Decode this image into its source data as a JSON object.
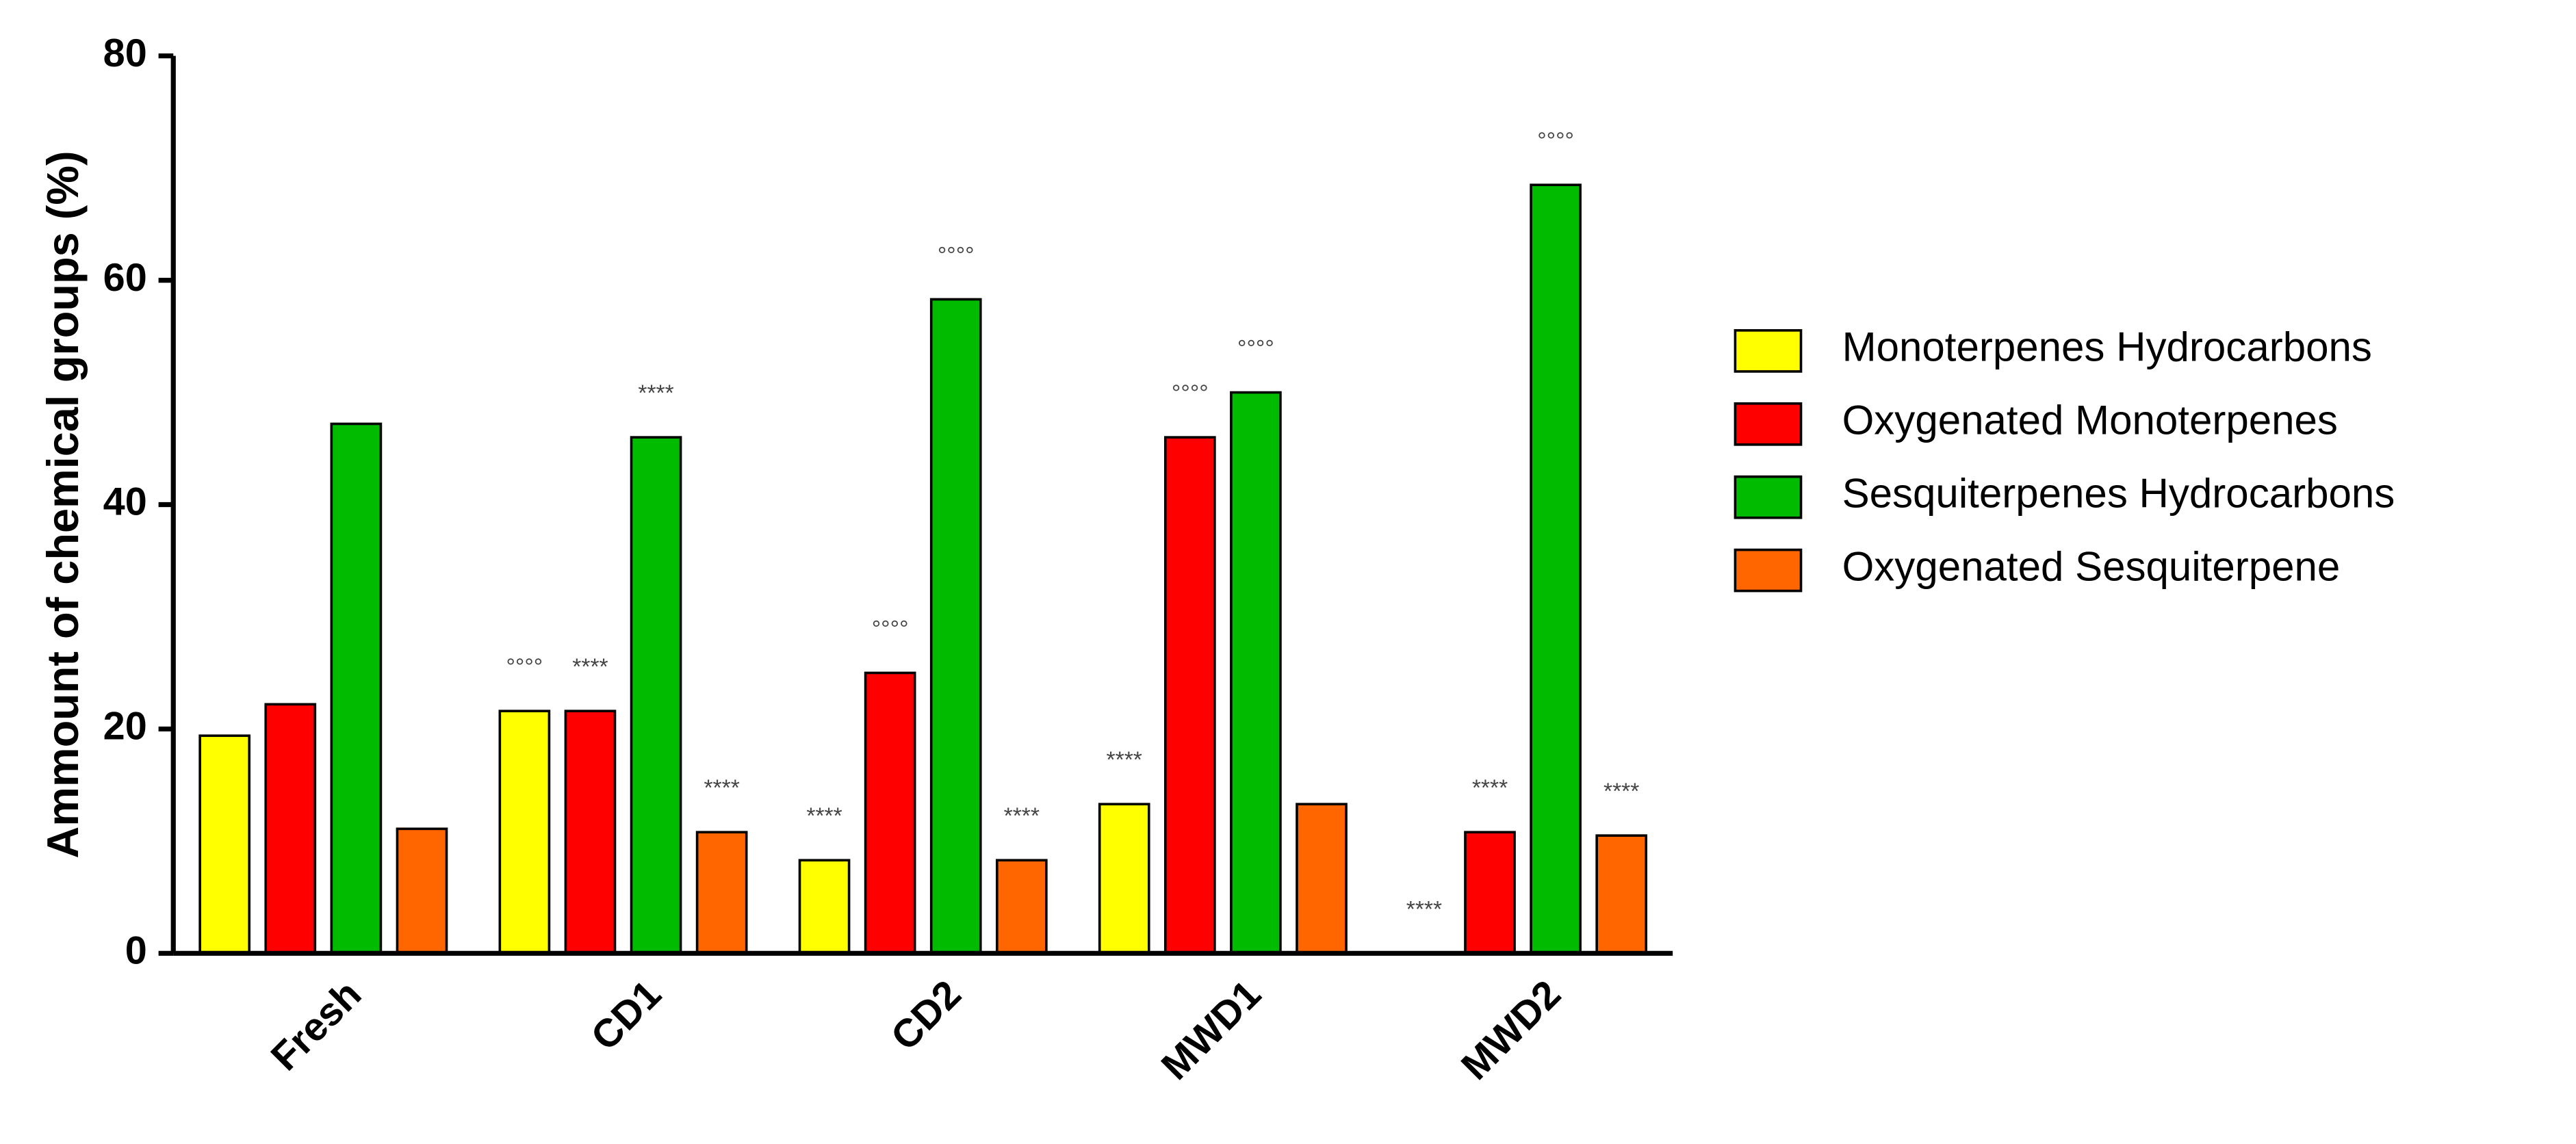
{
  "chart_data": {
    "type": "bar",
    "y_label": "Ammount of chemical groups (%)",
    "categories": [
      "Fresh",
      "CD1",
      "CD2",
      "MWD1",
      "MWD2"
    ],
    "series": [
      {
        "name": "Monoterpenes Hydrocarbons",
        "color": "#ffff00",
        "values": [
          19.4,
          21.6,
          8.3,
          13.3,
          0
        ],
        "annotations": [
          null,
          "°°°°",
          "****",
          "****",
          "****"
        ]
      },
      {
        "name": "Oxygenated Monoterpenes",
        "color": "#ff0000",
        "values": [
          22.2,
          21.6,
          25.0,
          46.0,
          10.8
        ],
        "annotations": [
          null,
          "****",
          "°°°°",
          "°°°°",
          "****"
        ]
      },
      {
        "name": "Sesquiterpenes Hydrocarbons",
        "color": "#00bb00",
        "values": [
          47.2,
          46.0,
          58.3,
          50.0,
          68.5
        ],
        "annotations": [
          null,
          "****",
          "°°°°",
          "°°°°",
          "°°°°"
        ]
      },
      {
        "name": "Oxygenated Sesquiterpene",
        "color": "#ff6600",
        "values": [
          11.1,
          10.8,
          8.3,
          13.3,
          10.5
        ],
        "annotations": [
          null,
          "****",
          "****",
          null,
          "****"
        ]
      }
    ],
    "ylim": [
      0,
      80
    ],
    "yticks": [
      0,
      20,
      40,
      60,
      80
    ],
    "grid": false,
    "legend": "right"
  }
}
